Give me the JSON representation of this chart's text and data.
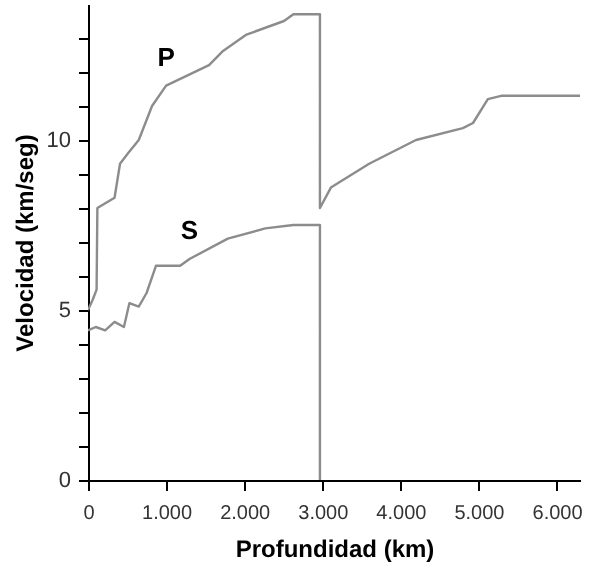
{
  "chart_data": {
    "type": "line",
    "xlabel": "Profundidad (km)",
    "ylabel": "Velocidad (km/seg)",
    "xlim": [
      0,
      6300
    ],
    "ylim": [
      0,
      14
    ],
    "xticks": [
      {
        "value": 0,
        "label": "0"
      },
      {
        "value": 1000,
        "label": "1.000"
      },
      {
        "value": 2000,
        "label": "2.000"
      },
      {
        "value": 3000,
        "label": "3.000"
      },
      {
        "value": 4000,
        "label": "4.000"
      },
      {
        "value": 5000,
        "label": "5.000"
      },
      {
        "value": 6000,
        "label": "6.000"
      }
    ],
    "yticks": [
      0,
      {
        "value": 1,
        "label": null
      },
      {
        "value": 2,
        "label": null
      },
      {
        "value": 3,
        "label": null
      },
      {
        "value": 4,
        "label": null
      },
      5,
      {
        "value": 6,
        "label": null
      },
      {
        "value": 7,
        "label": null
      },
      {
        "value": 8,
        "label": null
      },
      {
        "value": 9,
        "label": null
      },
      10,
      {
        "value": 11,
        "label": null
      },
      {
        "value": 12,
        "label": null
      },
      {
        "value": 13,
        "label": null
      }
    ],
    "grid": false,
    "marker": "none",
    "line_style": "solid",
    "series": [
      {
        "name": "P",
        "color": "#8c8c8c",
        "x": [
          0,
          60,
          110,
          120,
          340,
          410,
          510,
          650,
          820,
          1000,
          1550,
          1720,
          2030,
          2510,
          2630,
          2970,
          2970,
          3110,
          3600,
          4200,
          4800,
          4930,
          5120,
          5290,
          6300
        ],
        "values": [
          5.0,
          5.3,
          5.6,
          8.0,
          8.3,
          9.3,
          9.6,
          10.0,
          11.0,
          11.6,
          12.2,
          12.6,
          13.1,
          13.5,
          13.7,
          13.7,
          8.0,
          8.6,
          9.3,
          10.0,
          10.35,
          10.5,
          11.2,
          11.3,
          11.3
        ]
      },
      {
        "name": "S",
        "color": "#8c8c8c",
        "x": [
          0,
          100,
          220,
          340,
          460,
          530,
          650,
          750,
          870,
          1180,
          1300,
          1790,
          2270,
          2630,
          2970,
          2970
        ],
        "values": [
          4.4,
          4.5,
          4.4,
          4.65,
          4.5,
          5.2,
          5.1,
          5.5,
          6.3,
          6.3,
          6.5,
          7.1,
          7.4,
          7.5,
          7.5,
          0
        ]
      }
    ]
  }
}
